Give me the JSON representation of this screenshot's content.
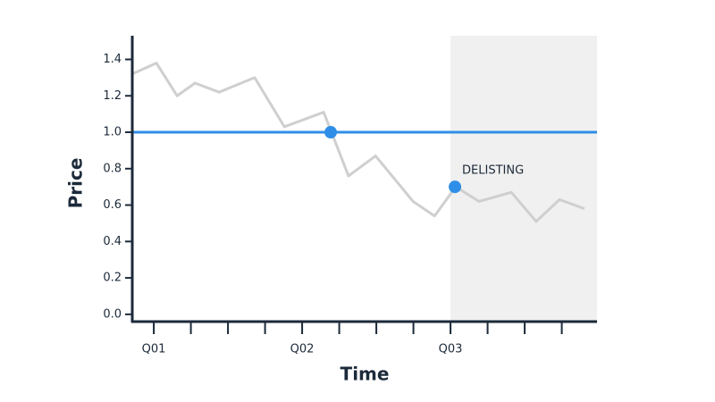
{
  "chart_data": {
    "type": "line",
    "xlabel": "Time",
    "ylabel": "Price",
    "xlim": [
      -0.58,
      11.95
    ],
    "ylim": [
      -0.04,
      1.53
    ],
    "xticks": [
      {
        "value": 0,
        "label": "Q01"
      },
      {
        "value": 4,
        "label": "Q02"
      },
      {
        "value": 8,
        "label": "Q03"
      }
    ],
    "xminorticks": [
      1,
      2,
      3,
      5,
      6,
      7,
      9,
      10,
      11
    ],
    "yticks": [
      {
        "value": 0,
        "label": "0.0"
      },
      0.2,
      0.4,
      0.6,
      0.8,
      {
        "value": 1,
        "label": "1.0"
      },
      1.2,
      1.4
    ],
    "shaded_xrange": [
      8,
      11.95
    ],
    "shade_color": "#f0f0f0",
    "series": [
      {
        "color": "#cfcfcf",
        "x": [
          -0.58,
          0.07,
          0.63,
          1.11,
          1.76,
          2.72,
          3.52,
          4.58,
          5.25,
          5.98,
          6.99,
          7.57,
          8.14,
          8.77,
          9.64,
          10.31,
          10.94,
          11.61
        ],
        "values": [
          1.32,
          1.38,
          1.2,
          1.27,
          1.22,
          1.3,
          1.03,
          1.11,
          0.76,
          0.87,
          0.62,
          0.54,
          0.7,
          0.62,
          0.67,
          0.51,
          0.63,
          0.58
        ]
      }
    ],
    "reference_line": {
      "y": 1,
      "color": "#2f8fe8"
    },
    "markers": [
      {
        "x": 4.77,
        "y": 1,
        "color": "#2f8fe8"
      },
      {
        "x": 8.12,
        "y": 0.7,
        "color": "#2f8fe8",
        "label": "DELISTING"
      }
    ]
  }
}
